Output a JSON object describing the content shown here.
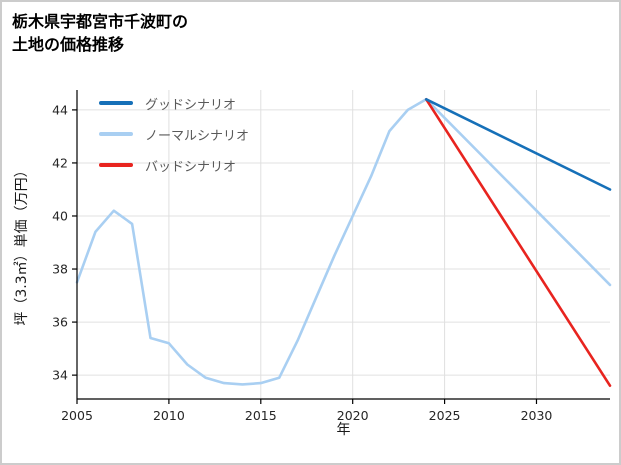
{
  "page": {
    "title_line1": "栃木県宇都宮市千波町の",
    "title_line2": "土地の価格推移"
  },
  "chart_data": {
    "type": "line",
    "title": "栃木県宇都宮市千波町の土地の価格推移",
    "xlabel": "年",
    "ylabel": "坪（3.3㎡）単価（万円）",
    "xlim": [
      2005,
      2034
    ],
    "ylim": [
      33.1,
      44.75
    ],
    "xticks": [
      2005,
      2010,
      2015,
      2020,
      2025,
      2030
    ],
    "yticks": [
      34,
      36,
      38,
      40,
      42,
      44
    ],
    "grid": true,
    "legend_position": "top-left",
    "series": [
      {
        "name": "グッドシナリオ",
        "color": "#1670b8",
        "x": [
          2024,
          2034
        ],
        "y": [
          44.4,
          41.0
        ]
      },
      {
        "name": "ノーマルシナリオ",
        "color": "#a9cff2",
        "x": [
          2005,
          2006,
          2007,
          2008,
          2009,
          2010,
          2011,
          2012,
          2013,
          2014,
          2015,
          2016,
          2017,
          2018,
          2019,
          2020,
          2021,
          2022,
          2023,
          2024,
          2034
        ],
        "y": [
          37.5,
          39.4,
          40.2,
          39.7,
          35.4,
          35.2,
          34.4,
          33.9,
          33.7,
          33.65,
          33.7,
          33.9,
          35.3,
          36.9,
          38.5,
          40.0,
          41.5,
          43.2,
          44.0,
          44.4,
          37.4
        ]
      },
      {
        "name": "バッドシナリオ",
        "color": "#e8241f",
        "x": [
          2024,
          2034
        ],
        "y": [
          44.4,
          33.6
        ]
      }
    ]
  }
}
